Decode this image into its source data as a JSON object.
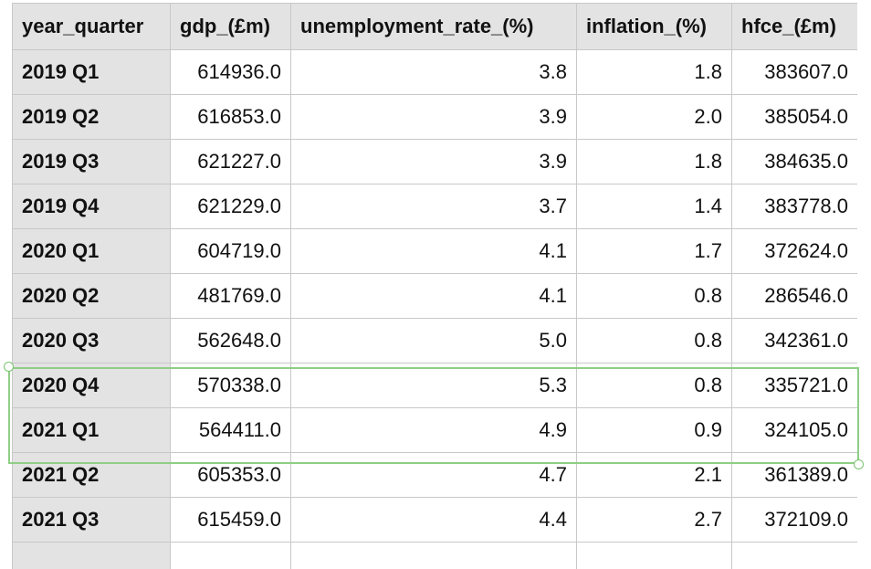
{
  "columns": [
    "year_quarter",
    "gdp_(£m)",
    "unemployment_rate_(%)",
    "inflation_(%)",
    "hfce_(£m)"
  ],
  "rows": [
    [
      "2019 Q1",
      "614936.0",
      "3.8",
      "1.8",
      "383607.0"
    ],
    [
      "2019 Q2",
      "616853.0",
      "3.9",
      "2.0",
      "385054.0"
    ],
    [
      "2019 Q3",
      "621227.0",
      "3.9",
      "1.8",
      "384635.0"
    ],
    [
      "2019 Q4",
      "621229.0",
      "3.7",
      "1.4",
      "383778.0"
    ],
    [
      "2020 Q1",
      "604719.0",
      "4.1",
      "1.7",
      "372624.0"
    ],
    [
      "2020 Q2",
      "481769.0",
      "4.1",
      "0.8",
      "286546.0"
    ],
    [
      "2020 Q3",
      "562648.0",
      "5.0",
      "0.8",
      "342361.0"
    ],
    [
      "2020 Q4",
      "570338.0",
      "5.3",
      "0.8",
      "335721.0"
    ],
    [
      "2021 Q1",
      "564411.0",
      "4.9",
      "0.9",
      "324105.0"
    ],
    [
      "2021 Q2",
      "605353.0",
      "4.7",
      "2.1",
      "361389.0"
    ],
    [
      "2021 Q3",
      "615459.0",
      "4.4",
      "2.7",
      "372109.0"
    ],
    [
      "",
      "",
      "",
      "",
      ""
    ]
  ],
  "selection": {
    "rows": [
      "2020 Q4",
      "2021 Q1"
    ],
    "color": "#8fce85"
  },
  "colors": {
    "header_bg": "#e3e3e3",
    "grid_line": "#c8c8c8",
    "text": "#111111"
  }
}
